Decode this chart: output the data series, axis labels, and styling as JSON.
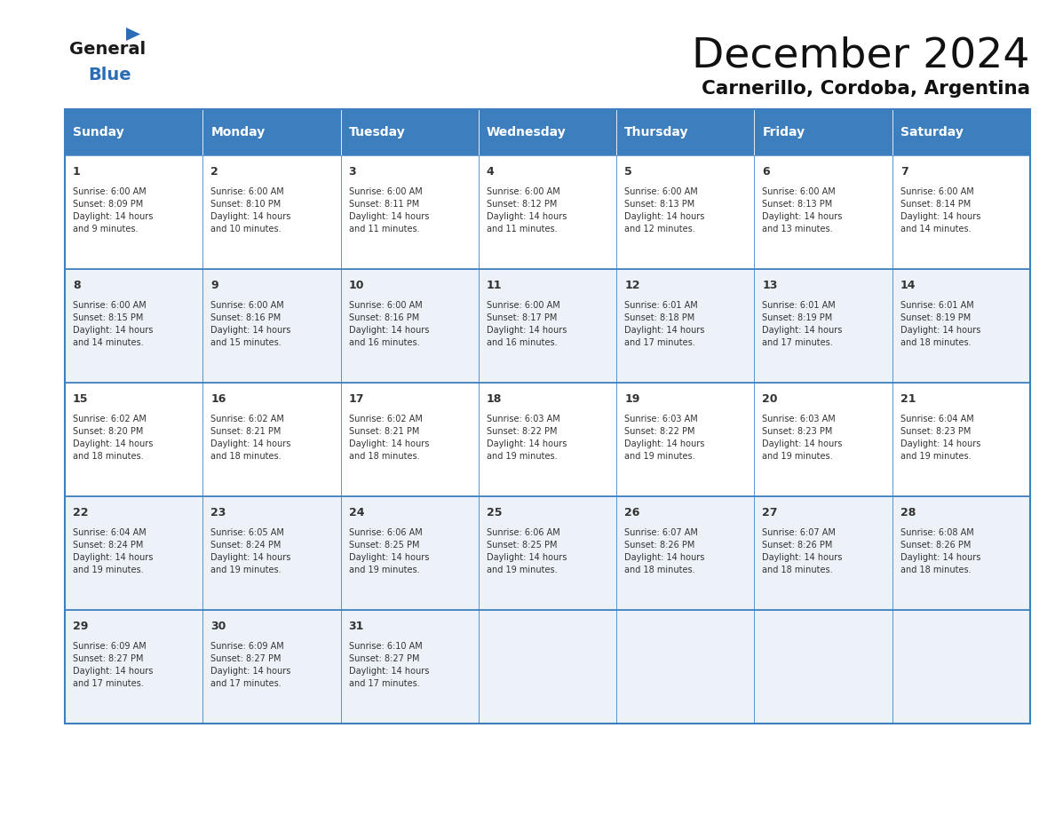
{
  "title": "December 2024",
  "subtitle": "Carnerillo, Cordoba, Argentina",
  "header_bg_color": "#3d7ebf",
  "header_text_color": "#ffffff",
  "cell_bg_white": "#ffffff",
  "cell_bg_light": "#f0f4f8",
  "border_color": "#3d7ebf",
  "row_sep_color": "#3d7ebf",
  "text_color": "#333333",
  "days_of_week": [
    "Sunday",
    "Monday",
    "Tuesday",
    "Wednesday",
    "Thursday",
    "Friday",
    "Saturday"
  ],
  "weeks": [
    [
      {
        "day": 1,
        "sunrise": "6:00 AM",
        "sunset": "8:09 PM",
        "daylight_hours": 14,
        "daylight_minutes": 9
      },
      {
        "day": 2,
        "sunrise": "6:00 AM",
        "sunset": "8:10 PM",
        "daylight_hours": 14,
        "daylight_minutes": 10
      },
      {
        "day": 3,
        "sunrise": "6:00 AM",
        "sunset": "8:11 PM",
        "daylight_hours": 14,
        "daylight_minutes": 11
      },
      {
        "day": 4,
        "sunrise": "6:00 AM",
        "sunset": "8:12 PM",
        "daylight_hours": 14,
        "daylight_minutes": 11
      },
      {
        "day": 5,
        "sunrise": "6:00 AM",
        "sunset": "8:13 PM",
        "daylight_hours": 14,
        "daylight_minutes": 12
      },
      {
        "day": 6,
        "sunrise": "6:00 AM",
        "sunset": "8:13 PM",
        "daylight_hours": 14,
        "daylight_minutes": 13
      },
      {
        "day": 7,
        "sunrise": "6:00 AM",
        "sunset": "8:14 PM",
        "daylight_hours": 14,
        "daylight_minutes": 14
      }
    ],
    [
      {
        "day": 8,
        "sunrise": "6:00 AM",
        "sunset": "8:15 PM",
        "daylight_hours": 14,
        "daylight_minutes": 14
      },
      {
        "day": 9,
        "sunrise": "6:00 AM",
        "sunset": "8:16 PM",
        "daylight_hours": 14,
        "daylight_minutes": 15
      },
      {
        "day": 10,
        "sunrise": "6:00 AM",
        "sunset": "8:16 PM",
        "daylight_hours": 14,
        "daylight_minutes": 16
      },
      {
        "day": 11,
        "sunrise": "6:00 AM",
        "sunset": "8:17 PM",
        "daylight_hours": 14,
        "daylight_minutes": 16
      },
      {
        "day": 12,
        "sunrise": "6:01 AM",
        "sunset": "8:18 PM",
        "daylight_hours": 14,
        "daylight_minutes": 17
      },
      {
        "day": 13,
        "sunrise": "6:01 AM",
        "sunset": "8:19 PM",
        "daylight_hours": 14,
        "daylight_minutes": 17
      },
      {
        "day": 14,
        "sunrise": "6:01 AM",
        "sunset": "8:19 PM",
        "daylight_hours": 14,
        "daylight_minutes": 18
      }
    ],
    [
      {
        "day": 15,
        "sunrise": "6:02 AM",
        "sunset": "8:20 PM",
        "daylight_hours": 14,
        "daylight_minutes": 18
      },
      {
        "day": 16,
        "sunrise": "6:02 AM",
        "sunset": "8:21 PM",
        "daylight_hours": 14,
        "daylight_minutes": 18
      },
      {
        "day": 17,
        "sunrise": "6:02 AM",
        "sunset": "8:21 PM",
        "daylight_hours": 14,
        "daylight_minutes": 18
      },
      {
        "day": 18,
        "sunrise": "6:03 AM",
        "sunset": "8:22 PM",
        "daylight_hours": 14,
        "daylight_minutes": 19
      },
      {
        "day": 19,
        "sunrise": "6:03 AM",
        "sunset": "8:22 PM",
        "daylight_hours": 14,
        "daylight_minutes": 19
      },
      {
        "day": 20,
        "sunrise": "6:03 AM",
        "sunset": "8:23 PM",
        "daylight_hours": 14,
        "daylight_minutes": 19
      },
      {
        "day": 21,
        "sunrise": "6:04 AM",
        "sunset": "8:23 PM",
        "daylight_hours": 14,
        "daylight_minutes": 19
      }
    ],
    [
      {
        "day": 22,
        "sunrise": "6:04 AM",
        "sunset": "8:24 PM",
        "daylight_hours": 14,
        "daylight_minutes": 19
      },
      {
        "day": 23,
        "sunrise": "6:05 AM",
        "sunset": "8:24 PM",
        "daylight_hours": 14,
        "daylight_minutes": 19
      },
      {
        "day": 24,
        "sunrise": "6:06 AM",
        "sunset": "8:25 PM",
        "daylight_hours": 14,
        "daylight_minutes": 19
      },
      {
        "day": 25,
        "sunrise": "6:06 AM",
        "sunset": "8:25 PM",
        "daylight_hours": 14,
        "daylight_minutes": 19
      },
      {
        "day": 26,
        "sunrise": "6:07 AM",
        "sunset": "8:26 PM",
        "daylight_hours": 14,
        "daylight_minutes": 18
      },
      {
        "day": 27,
        "sunrise": "6:07 AM",
        "sunset": "8:26 PM",
        "daylight_hours": 14,
        "daylight_minutes": 18
      },
      {
        "day": 28,
        "sunrise": "6:08 AM",
        "sunset": "8:26 PM",
        "daylight_hours": 14,
        "daylight_minutes": 18
      }
    ],
    [
      {
        "day": 29,
        "sunrise": "6:09 AM",
        "sunset": "8:27 PM",
        "daylight_hours": 14,
        "daylight_minutes": 17
      },
      {
        "day": 30,
        "sunrise": "6:09 AM",
        "sunset": "8:27 PM",
        "daylight_hours": 14,
        "daylight_minutes": 17
      },
      {
        "day": 31,
        "sunrise": "6:10 AM",
        "sunset": "8:27 PM",
        "daylight_hours": 14,
        "daylight_minutes": 17
      },
      null,
      null,
      null,
      null
    ]
  ]
}
